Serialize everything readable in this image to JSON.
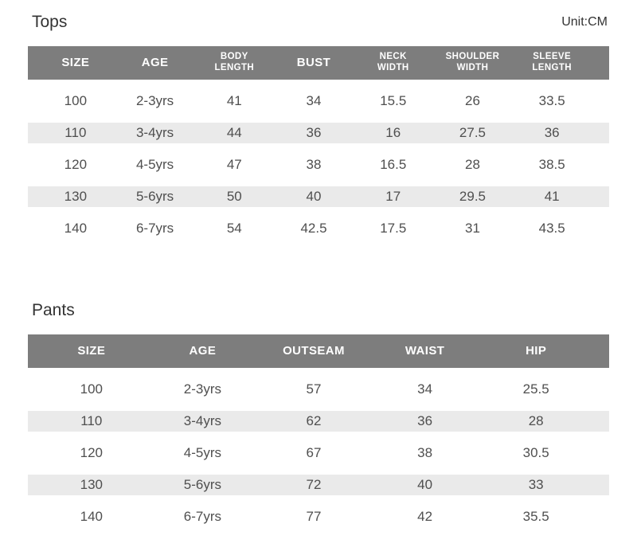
{
  "unit_label": "Unit:CM",
  "colors": {
    "header_bg": "#7d7d7d",
    "header_text": "#ffffff",
    "stripe": "#eaeaea",
    "text": "#4f4f4f",
    "title": "#333333"
  },
  "tops": {
    "title": "Tops",
    "columns": [
      {
        "label": "SIZE"
      },
      {
        "label": "AGE"
      },
      {
        "label": "BODY\nLENGTH",
        "small": true
      },
      {
        "label": "BUST"
      },
      {
        "label": "NECK\nWIDTH",
        "small": true
      },
      {
        "label": "SHOULDER\nWIDTH",
        "small": true
      },
      {
        "label": "SLEEVE\nLENGTH",
        "small": true
      }
    ],
    "rows": [
      [
        "100",
        "2-3yrs",
        "41",
        "34",
        "15.5",
        "26",
        "33.5"
      ],
      [
        "110",
        "3-4yrs",
        "44",
        "36",
        "16",
        "27.5",
        "36"
      ],
      [
        "120",
        "4-5yrs",
        "47",
        "38",
        "16.5",
        "28",
        "38.5"
      ],
      [
        "130",
        "5-6yrs",
        "50",
        "40",
        "17",
        "29.5",
        "41"
      ],
      [
        "140",
        "6-7yrs",
        "54",
        "42.5",
        "17.5",
        "31",
        "43.5"
      ]
    ]
  },
  "pants": {
    "title": "Pants",
    "columns": [
      {
        "label": "SIZE"
      },
      {
        "label": "AGE"
      },
      {
        "label": "OUTSEAM"
      },
      {
        "label": "WAIST"
      },
      {
        "label": "HIP"
      }
    ],
    "rows": [
      [
        "100",
        "2-3yrs",
        "57",
        "34",
        "25.5"
      ],
      [
        "110",
        "3-4yrs",
        "62",
        "36",
        "28"
      ],
      [
        "120",
        "4-5yrs",
        "67",
        "38",
        "30.5"
      ],
      [
        "130",
        "5-6yrs",
        "72",
        "40",
        "33"
      ],
      [
        "140",
        "6-7yrs",
        "77",
        "42",
        "35.5"
      ]
    ]
  }
}
